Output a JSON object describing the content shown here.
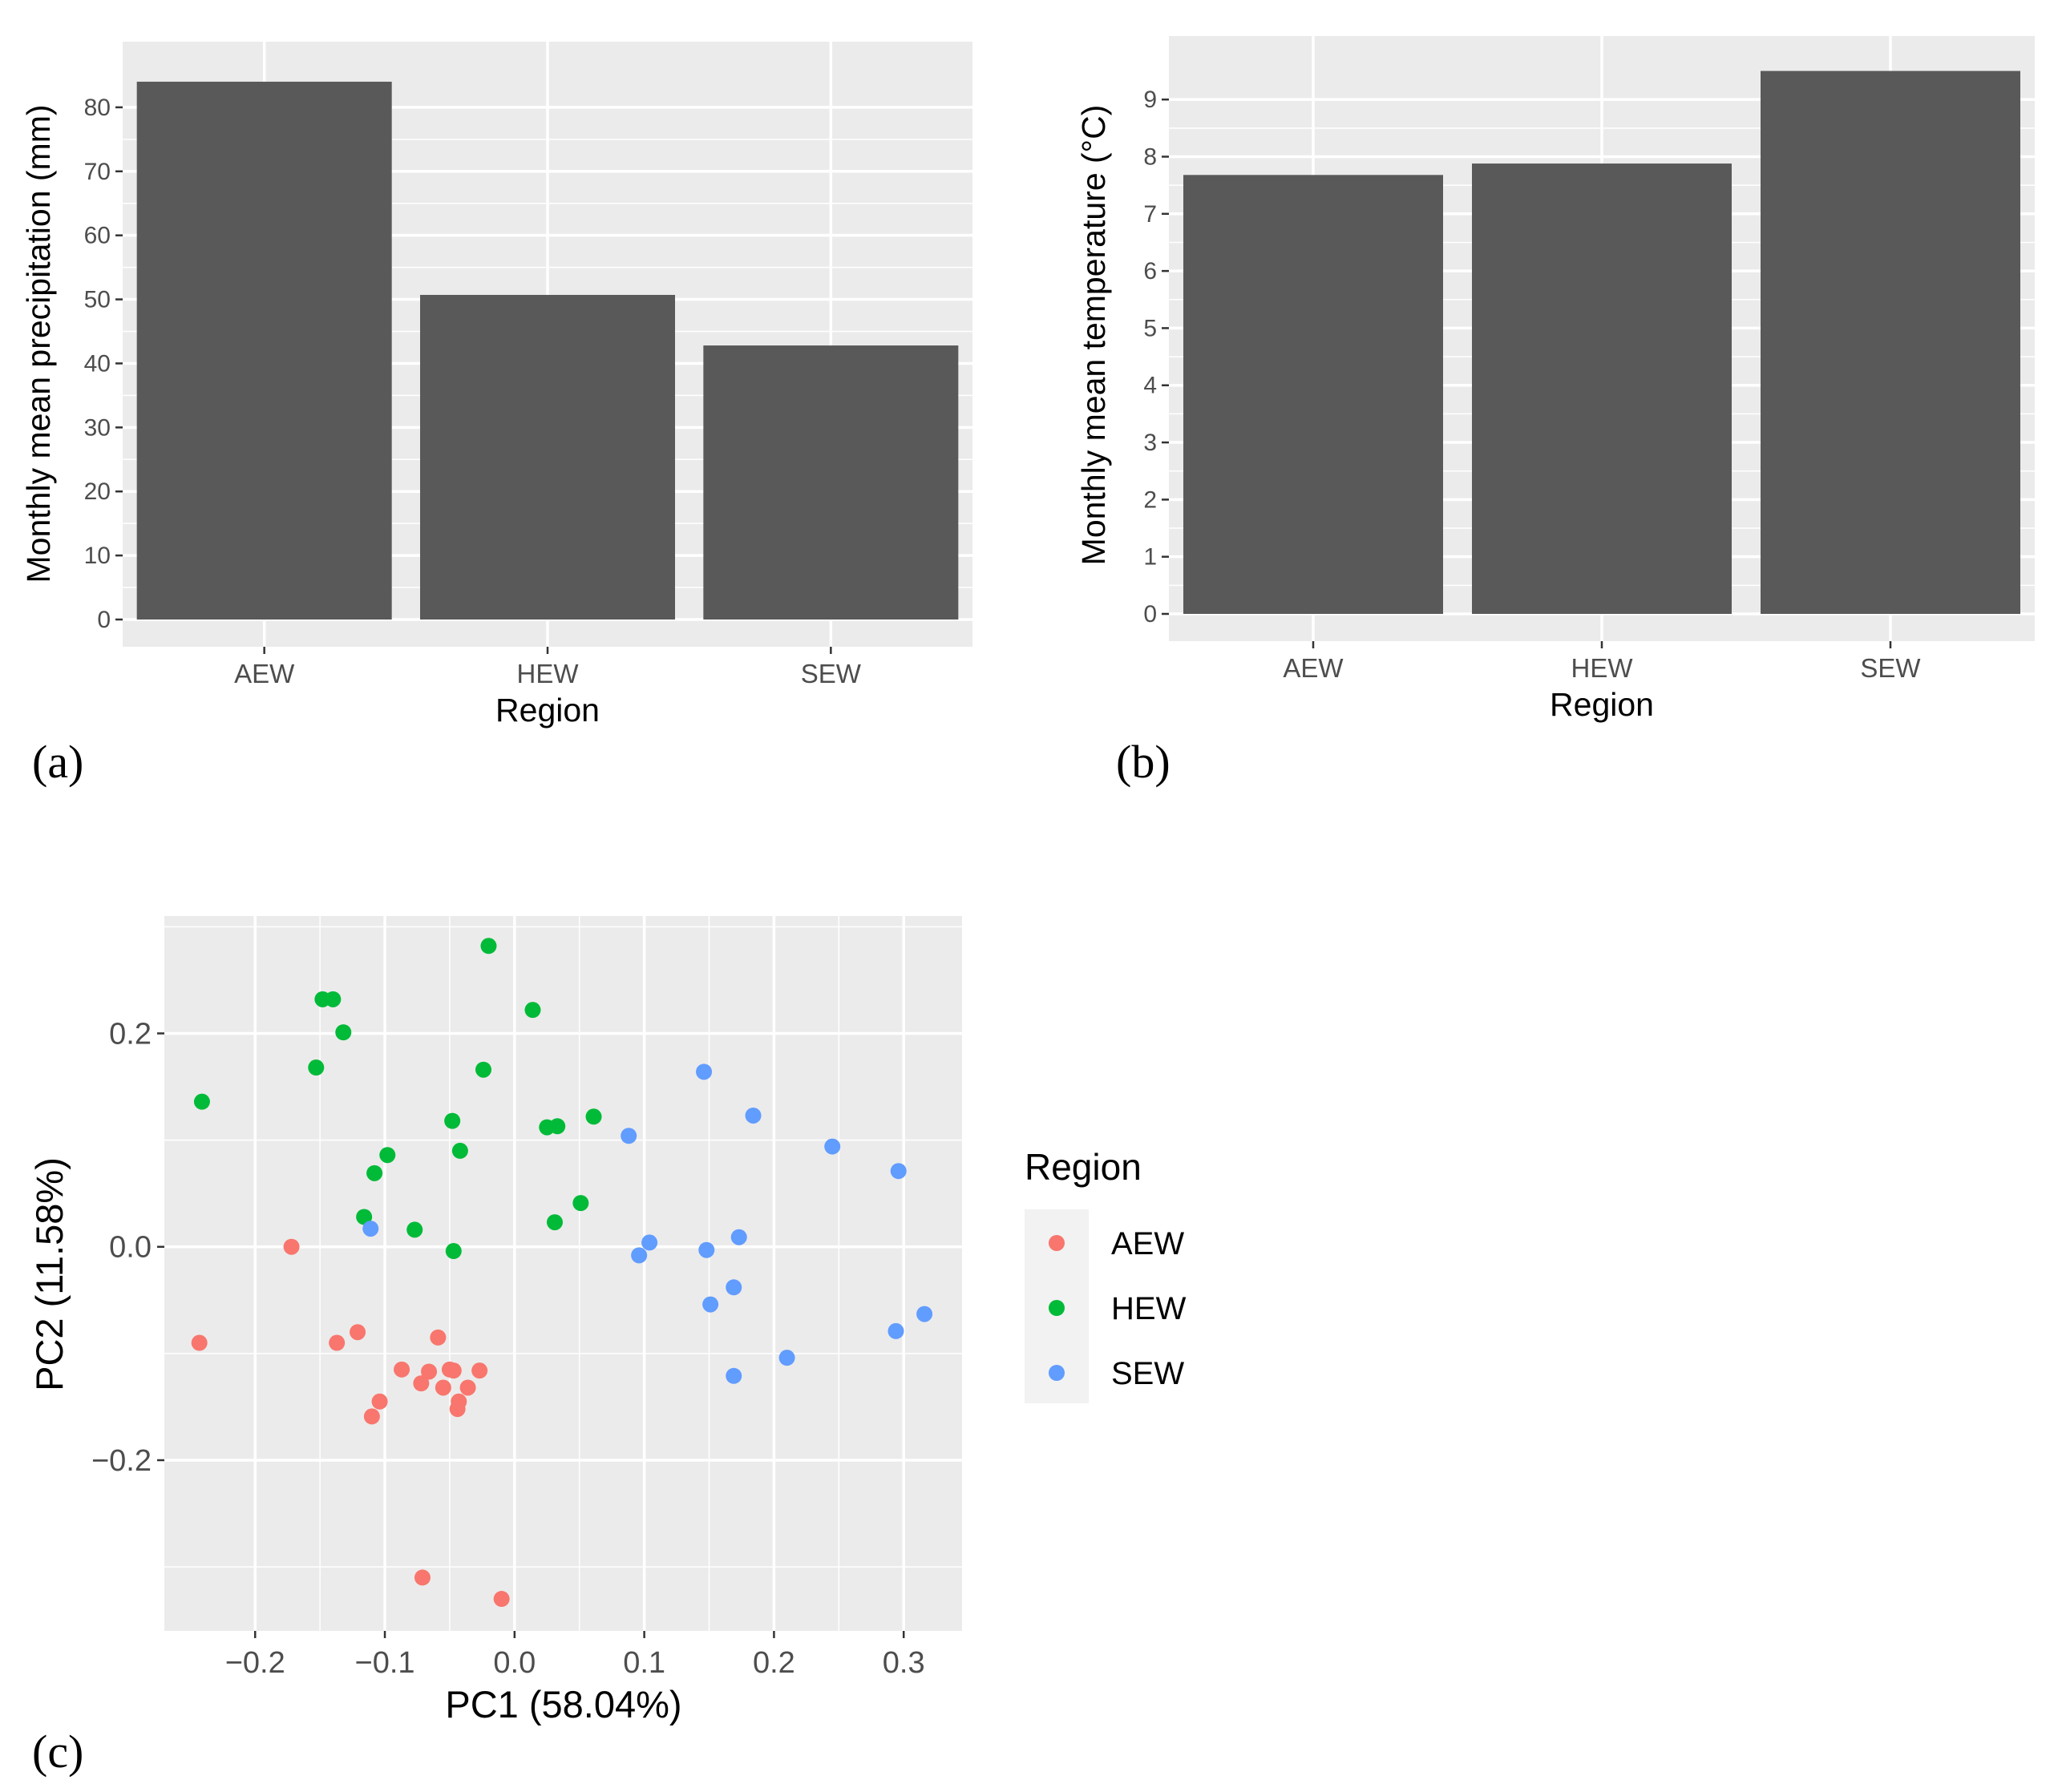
{
  "chart_data": [
    {
      "id": "a",
      "panel_label": "(a)",
      "type": "bar",
      "title": "",
      "xlabel": "Region",
      "ylabel": "Monthly mean precipitation (mm)",
      "categories": [
        "AEW",
        "HEW",
        "SEW"
      ],
      "values": [
        84,
        50.7,
        42.8
      ],
      "ylim": [
        0,
        89
      ],
      "yticks": [
        0,
        10,
        20,
        30,
        40,
        50,
        60,
        70,
        80
      ],
      "ytick_labels": [
        "0",
        "10",
        "20",
        "30",
        "40",
        "50",
        "60",
        "70",
        "80"
      ],
      "bar_color": "#595959",
      "panel_bg": "#ebebeb",
      "grid": true
    },
    {
      "id": "b",
      "panel_label": "(b)",
      "type": "bar",
      "title": "",
      "xlabel": "Region",
      "ylabel": "Monthly mean temperature (°C)",
      "categories": [
        "AEW",
        "HEW",
        "SEW"
      ],
      "values": [
        7.68,
        7.88,
        9.5
      ],
      "ylim": [
        0,
        9.97
      ],
      "yticks": [
        0,
        1,
        2,
        3,
        4,
        5,
        6,
        7,
        8,
        9
      ],
      "ytick_labels": [
        "0",
        "1",
        "2",
        "3",
        "4",
        "5",
        "6",
        "7",
        "8",
        "9"
      ],
      "bar_color": "#595959",
      "panel_bg": "#ebebeb",
      "grid": true
    },
    {
      "id": "c",
      "panel_label": "(c)",
      "type": "scatter",
      "title": "",
      "xlabel": "PC1 (58.04%)",
      "ylabel": "PC2 (11.58%)",
      "xlim": [
        -0.27,
        0.345
      ],
      "ylim": [
        -0.36,
        0.31
      ],
      "xticks": [
        -0.2,
        -0.1,
        0.0,
        0.1,
        0.2,
        0.3
      ],
      "xtick_labels": [
        "−0.2",
        "−0.1",
        "0.0",
        "0.1",
        "0.2",
        "0.3"
      ],
      "yticks": [
        -0.2,
        0.0,
        0.2
      ],
      "ytick_labels": [
        "−0.2",
        "0.0",
        "0.2"
      ],
      "panel_bg": "#ebebeb",
      "grid": true,
      "legend": {
        "title": "Region",
        "placement": "right",
        "entries": [
          "AEW",
          "HEW",
          "SEW"
        ]
      },
      "series": [
        {
          "name": "AEW",
          "color": "#f8766d",
          "points": [
            [
              -0.172,
              0.0
            ],
            [
              -0.243,
              -0.09
            ],
            [
              -0.137,
              -0.09
            ],
            [
              -0.121,
              -0.08
            ],
            [
              -0.059,
              -0.085
            ],
            [
              -0.087,
              -0.115
            ],
            [
              -0.066,
              -0.117
            ],
            [
              -0.05,
              -0.115
            ],
            [
              -0.072,
              -0.128
            ],
            [
              -0.055,
              -0.132
            ],
            [
              -0.047,
              -0.116
            ],
            [
              -0.027,
              -0.116
            ],
            [
              -0.036,
              -0.132
            ],
            [
              -0.043,
              -0.145
            ],
            [
              -0.044,
              -0.152
            ],
            [
              -0.104,
              -0.145
            ],
            [
              -0.11,
              -0.159
            ],
            [
              -0.071,
              -0.31
            ],
            [
              -0.01,
              -0.33
            ]
          ]
        },
        {
          "name": "HEW",
          "color": "#00ba38",
          "points": [
            [
              -0.02,
              0.282
            ],
            [
              -0.148,
              0.232
            ],
            [
              -0.14,
              0.232
            ],
            [
              0.014,
              0.222
            ],
            [
              -0.132,
              0.201
            ],
            [
              -0.153,
              0.168
            ],
            [
              -0.024,
              0.166
            ],
            [
              -0.241,
              0.136
            ],
            [
              -0.048,
              0.118
            ],
            [
              0.061,
              0.122
            ],
            [
              0.025,
              0.112
            ],
            [
              0.033,
              0.113
            ],
            [
              -0.042,
              0.09
            ],
            [
              -0.098,
              0.086
            ],
            [
              -0.108,
              0.069
            ],
            [
              0.051,
              0.041
            ],
            [
              -0.116,
              0.028
            ],
            [
              0.031,
              0.023
            ],
            [
              -0.077,
              0.016
            ],
            [
              -0.047,
              -0.004
            ]
          ]
        },
        {
          "name": "SEW",
          "color": "#619cff",
          "points": [
            [
              0.146,
              0.164
            ],
            [
              0.184,
              0.123
            ],
            [
              0.088,
              0.104
            ],
            [
              0.245,
              0.094
            ],
            [
              0.296,
              0.071
            ],
            [
              -0.111,
              0.017
            ],
            [
              0.173,
              0.009
            ],
            [
              0.104,
              0.004
            ],
            [
              0.148,
              -0.003
            ],
            [
              0.096,
              -0.008
            ],
            [
              0.169,
              -0.038
            ],
            [
              0.151,
              -0.054
            ],
            [
              0.316,
              -0.063
            ],
            [
              0.294,
              -0.079
            ],
            [
              0.21,
              -0.104
            ],
            [
              0.169,
              -0.121
            ]
          ]
        }
      ]
    }
  ]
}
